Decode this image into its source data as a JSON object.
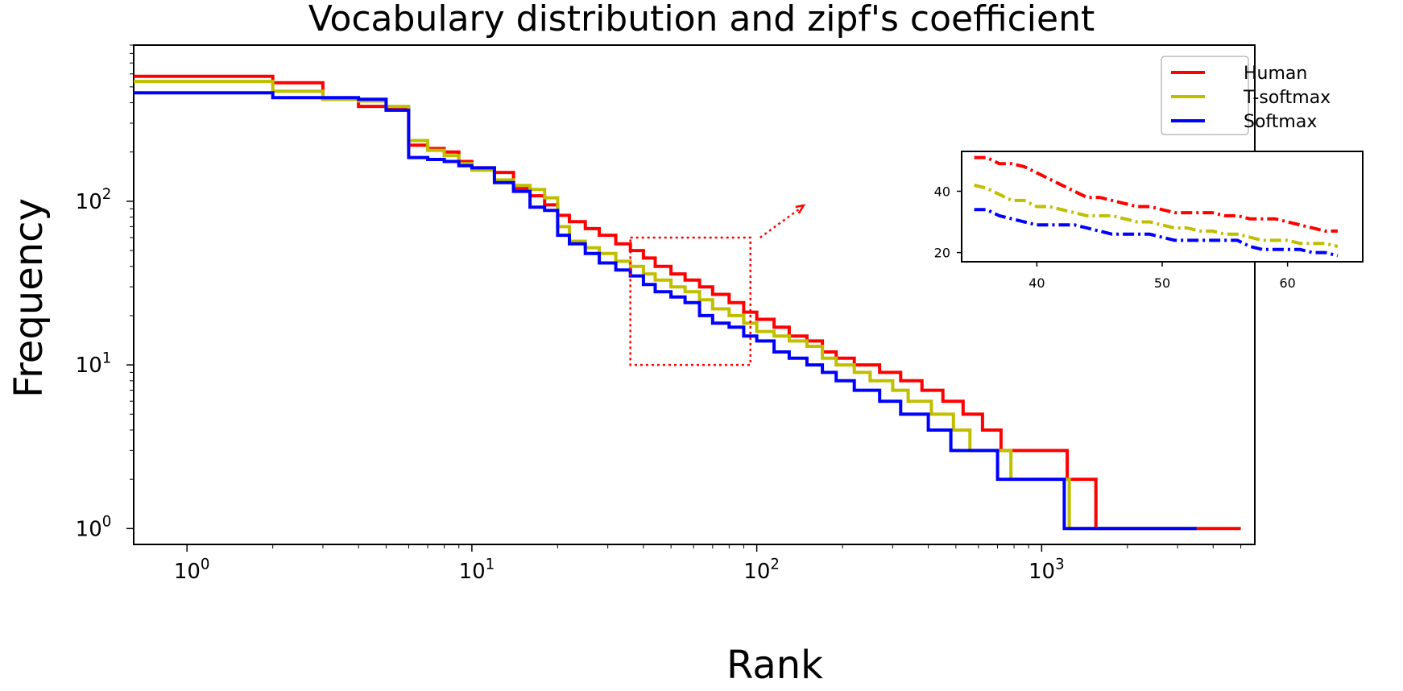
{
  "chart_data": [
    {
      "type": "line",
      "title": "Vocabulary distribution and zipf's coefficient",
      "xlabel": "Rank",
      "ylabel": "Frequency",
      "xscale": "log",
      "yscale": "log",
      "xlim": [
        0.65,
        5600
      ],
      "ylim": [
        0.8,
        900
      ],
      "xticks": [
        1,
        10,
        100,
        1000
      ],
      "xtick_labels": [
        "10^0",
        "10^1",
        "10^2",
        "10^3"
      ],
      "yticks": [
        1,
        10,
        100
      ],
      "ytick_labels": [
        "10^0",
        "10^1",
        "10^2"
      ],
      "legend": "top-right",
      "grid": false,
      "series": [
        {
          "name": "Human",
          "color": "#ff0000",
          "step": "post",
          "points": [
            [
              0.65,
              580
            ],
            [
              1,
              580
            ],
            [
              2,
              530
            ],
            [
              3,
              420
            ],
            [
              4,
              380
            ],
            [
              5,
              370
            ],
            [
              6,
              220
            ],
            [
              7,
              210
            ],
            [
              8,
              200
            ],
            [
              9,
              175
            ],
            [
              10,
              160
            ],
            [
              12,
              150
            ],
            [
              14,
              120
            ],
            [
              16,
              108
            ],
            [
              18,
              95
            ],
            [
              20,
              82
            ],
            [
              22,
              75
            ],
            [
              25,
              68
            ],
            [
              28,
              62
            ],
            [
              32,
              55
            ],
            [
              36,
              50
            ],
            [
              40,
              45
            ],
            [
              44,
              40
            ],
            [
              50,
              36
            ],
            [
              56,
              33
            ],
            [
              63,
              30
            ],
            [
              70,
              27
            ],
            [
              80,
              24
            ],
            [
              90,
              21
            ],
            [
              100,
              19
            ],
            [
              115,
              17
            ],
            [
              130,
              15
            ],
            [
              150,
              14
            ],
            [
              170,
              12
            ],
            [
              190,
              11
            ],
            [
              220,
              10
            ],
            [
              270,
              9
            ],
            [
              320,
              8
            ],
            [
              380,
              7
            ],
            [
              450,
              6
            ],
            [
              530,
              5
            ],
            [
              620,
              4
            ],
            [
              720,
              3
            ],
            [
              900,
              3
            ],
            [
              1230,
              2
            ],
            [
              1550,
              1
            ],
            [
              5000,
              1
            ]
          ]
        },
        {
          "name": "T-softmax",
          "color": "#bfbf00",
          "step": "post",
          "points": [
            [
              0.65,
              540
            ],
            [
              1,
              540
            ],
            [
              2,
              470
            ],
            [
              3,
              420
            ],
            [
              4,
              410
            ],
            [
              5,
              380
            ],
            [
              6,
              235
            ],
            [
              7,
              205
            ],
            [
              8,
              190
            ],
            [
              9,
              170
            ],
            [
              10,
              155
            ],
            [
              12,
              135
            ],
            [
              14,
              125
            ],
            [
              16,
              118
            ],
            [
              18,
              105
            ],
            [
              20,
              70
            ],
            [
              22,
              57
            ],
            [
              25,
              52
            ],
            [
              28,
              48
            ],
            [
              32,
              43
            ],
            [
              36,
              40
            ],
            [
              40,
              36
            ],
            [
              44,
              33
            ],
            [
              50,
              30
            ],
            [
              56,
              28
            ],
            [
              63,
              25
            ],
            [
              70,
              22
            ],
            [
              80,
              20
            ],
            [
              90,
              18
            ],
            [
              100,
              16
            ],
            [
              115,
              15
            ],
            [
              130,
              14
            ],
            [
              150,
              13
            ],
            [
              170,
              11
            ],
            [
              190,
              10
            ],
            [
              220,
              9
            ],
            [
              250,
              8
            ],
            [
              300,
              7
            ],
            [
              340,
              6
            ],
            [
              410,
              5
            ],
            [
              490,
              4
            ],
            [
              560,
              3
            ],
            [
              730,
              3
            ],
            [
              780,
              2
            ],
            [
              1250,
              1
            ],
            [
              3500,
              1
            ]
          ]
        },
        {
          "name": "Softmax",
          "color": "#0000ff",
          "step": "post",
          "points": [
            [
              0.65,
              460
            ],
            [
              1,
              460
            ],
            [
              2,
              430
            ],
            [
              3,
              430
            ],
            [
              4,
              420
            ],
            [
              5,
              360
            ],
            [
              6,
              185
            ],
            [
              7,
              180
            ],
            [
              8,
              175
            ],
            [
              9,
              165
            ],
            [
              10,
              160
            ],
            [
              12,
              130
            ],
            [
              14,
              115
            ],
            [
              16,
              92
            ],
            [
              18,
              88
            ],
            [
              20,
              62
            ],
            [
              22,
              55
            ],
            [
              25,
              48
            ],
            [
              28,
              42
            ],
            [
              32,
              38
            ],
            [
              36,
              35
            ],
            [
              40,
              31
            ],
            [
              44,
              28
            ],
            [
              50,
              26
            ],
            [
              56,
              24
            ],
            [
              63,
              20
            ],
            [
              70,
              18
            ],
            [
              80,
              17
            ],
            [
              90,
              15
            ],
            [
              100,
              14
            ],
            [
              115,
              12
            ],
            [
              130,
              11
            ],
            [
              150,
              10
            ],
            [
              170,
              9
            ],
            [
              190,
              8
            ],
            [
              220,
              7
            ],
            [
              270,
              6
            ],
            [
              320,
              5
            ],
            [
              400,
              4
            ],
            [
              480,
              3
            ],
            [
              700,
              2
            ],
            [
              1200,
              1
            ],
            [
              3500,
              1
            ]
          ]
        }
      ],
      "zoom_box": {
        "x": [
          36,
          95
        ],
        "y": [
          10,
          60
        ],
        "color": "#ff0000"
      }
    },
    {
      "type": "line",
      "title": "",
      "inset": true,
      "xlim": [
        34,
        66
      ],
      "ylim": [
        17,
        53
      ],
      "xticks": [
        40,
        50,
        60
      ],
      "yticks": [
        20,
        40
      ],
      "xtick_labels": [
        "40",
        "50",
        "60"
      ],
      "ytick_labels": [
        "20",
        "40"
      ],
      "line_style": "dash-dot",
      "series": [
        {
          "name": "Human",
          "color": "#ff0000",
          "points": [
            [
              35,
              51
            ],
            [
              36,
              51
            ],
            [
              37,
              49
            ],
            [
              38,
              49
            ],
            [
              39,
              48
            ],
            [
              40,
              46
            ],
            [
              41,
              44
            ],
            [
              42,
              42
            ],
            [
              43,
              40
            ],
            [
              44,
              38
            ],
            [
              45,
              38
            ],
            [
              46,
              37
            ],
            [
              47,
              36
            ],
            [
              48,
              35
            ],
            [
              49,
              35
            ],
            [
              50,
              34
            ],
            [
              51,
              33
            ],
            [
              52,
              33
            ],
            [
              53,
              33
            ],
            [
              54,
              33
            ],
            [
              55,
              32
            ],
            [
              56,
              32
            ],
            [
              57,
              31
            ],
            [
              58,
              31
            ],
            [
              59,
              31
            ],
            [
              60,
              30
            ],
            [
              61,
              29
            ],
            [
              62,
              28
            ],
            [
              63,
              27
            ],
            [
              64,
              27
            ]
          ]
        },
        {
          "name": "T-softmax",
          "color": "#bfbf00",
          "points": [
            [
              35,
              42
            ],
            [
              36,
              41
            ],
            [
              37,
              39
            ],
            [
              38,
              37
            ],
            [
              39,
              37
            ],
            [
              40,
              35
            ],
            [
              41,
              35
            ],
            [
              42,
              34
            ],
            [
              43,
              33
            ],
            [
              44,
              32
            ],
            [
              45,
              32
            ],
            [
              46,
              32
            ],
            [
              47,
              31
            ],
            [
              48,
              30
            ],
            [
              49,
              30
            ],
            [
              50,
              29
            ],
            [
              51,
              28
            ],
            [
              52,
              28
            ],
            [
              53,
              27
            ],
            [
              54,
              27
            ],
            [
              55,
              26
            ],
            [
              56,
              26
            ],
            [
              57,
              25
            ],
            [
              58,
              24
            ],
            [
              59,
              24
            ],
            [
              60,
              24
            ],
            [
              61,
              23
            ],
            [
              62,
              23
            ],
            [
              63,
              23
            ],
            [
              64,
              22
            ]
          ]
        },
        {
          "name": "Softmax",
          "color": "#0000ff",
          "points": [
            [
              35,
              34
            ],
            [
              36,
              34
            ],
            [
              37,
              32
            ],
            [
              38,
              31
            ],
            [
              39,
              30
            ],
            [
              40,
              29
            ],
            [
              41,
              29
            ],
            [
              42,
              29
            ],
            [
              43,
              29
            ],
            [
              44,
              28
            ],
            [
              45,
              27
            ],
            [
              46,
              26
            ],
            [
              47,
              26
            ],
            [
              48,
              26
            ],
            [
              49,
              26
            ],
            [
              50,
              25
            ],
            [
              51,
              24
            ],
            [
              52,
              24
            ],
            [
              53,
              24
            ],
            [
              54,
              24
            ],
            [
              55,
              24
            ],
            [
              56,
              24
            ],
            [
              57,
              22
            ],
            [
              58,
              21
            ],
            [
              59,
              21
            ],
            [
              60,
              21
            ],
            [
              61,
              21
            ],
            [
              62,
              20
            ],
            [
              63,
              20
            ],
            [
              64,
              19
            ]
          ]
        }
      ]
    }
  ]
}
